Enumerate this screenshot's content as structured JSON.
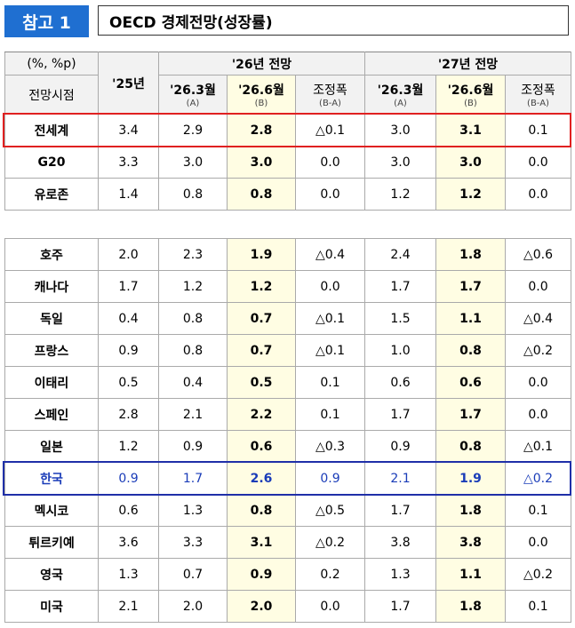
{
  "header": {
    "tag": "참고 1",
    "title": "OECD 경제전망(성장률)"
  },
  "table": {
    "unit": "(%, %p)",
    "row_header": "전망시점",
    "col25": "'25년",
    "groups": [
      {
        "title": "'26년 전망",
        "cols": [
          {
            "label": "'26.3월",
            "sub": "(A)"
          },
          {
            "label": "'26.6월",
            "sub": "(B)"
          },
          {
            "label": "조정폭",
            "sub": "(B-A)"
          }
        ]
      },
      {
        "title": "'27년 전망",
        "cols": [
          {
            "label": "'26.3월",
            "sub": "(A)"
          },
          {
            "label": "'26.6월",
            "sub": "(B)"
          },
          {
            "label": "조정폭",
            "sub": "(B-A)"
          }
        ]
      }
    ],
    "sections": [
      [
        {
          "name": "전세계",
          "cells": [
            "3.4",
            "2.9",
            "2.8",
            "△0.1",
            "3.0",
            "3.1",
            "0.1"
          ]
        },
        {
          "name": "G20",
          "cells": [
            "3.3",
            "3.0",
            "3.0",
            "0.0",
            "3.0",
            "3.0",
            "0.0"
          ]
        },
        {
          "name": "유로존",
          "cells": [
            "1.4",
            "0.8",
            "0.8",
            "0.0",
            "1.2",
            "1.2",
            "0.0"
          ]
        }
      ],
      [
        {
          "name": "호주",
          "cells": [
            "2.0",
            "2.3",
            "1.9",
            "△0.4",
            "2.4",
            "1.8",
            "△0.6"
          ]
        },
        {
          "name": "캐나다",
          "cells": [
            "1.7",
            "1.2",
            "1.2",
            "0.0",
            "1.7",
            "1.7",
            "0.0"
          ]
        },
        {
          "name": "독일",
          "cells": [
            "0.4",
            "0.8",
            "0.7",
            "△0.1",
            "1.5",
            "1.1",
            "△0.4"
          ]
        },
        {
          "name": "프랑스",
          "cells": [
            "0.9",
            "0.8",
            "0.7",
            "△0.1",
            "1.0",
            "0.8",
            "△0.2"
          ]
        },
        {
          "name": "이태리",
          "cells": [
            "0.5",
            "0.4",
            "0.5",
            "0.1",
            "0.6",
            "0.6",
            "0.0"
          ]
        },
        {
          "name": "스페인",
          "cells": [
            "2.8",
            "2.1",
            "2.2",
            "0.1",
            "1.7",
            "1.7",
            "0.0"
          ]
        },
        {
          "name": "일본",
          "cells": [
            "1.2",
            "0.9",
            "0.6",
            "△0.3",
            "0.9",
            "0.8",
            "△0.1"
          ]
        },
        {
          "name": "한국",
          "cells": [
            "0.9",
            "1.7",
            "2.6",
            "0.9",
            "2.1",
            "1.9",
            "△0.2"
          ]
        },
        {
          "name": "멕시코",
          "cells": [
            "0.6",
            "1.3",
            "0.8",
            "△0.5",
            "1.7",
            "1.8",
            "0.1"
          ]
        },
        {
          "name": "튀르키예",
          "cells": [
            "3.6",
            "3.3",
            "3.1",
            "△0.2",
            "3.8",
            "3.8",
            "0.0"
          ]
        },
        {
          "name": "영국",
          "cells": [
            "1.3",
            "0.7",
            "0.9",
            "0.2",
            "1.3",
            "1.1",
            "△0.2"
          ]
        },
        {
          "name": "미국",
          "cells": [
            "2.1",
            "2.0",
            "2.0",
            "0.0",
            "1.7",
            "1.8",
            "0.1"
          ]
        }
      ]
    ]
  }
}
